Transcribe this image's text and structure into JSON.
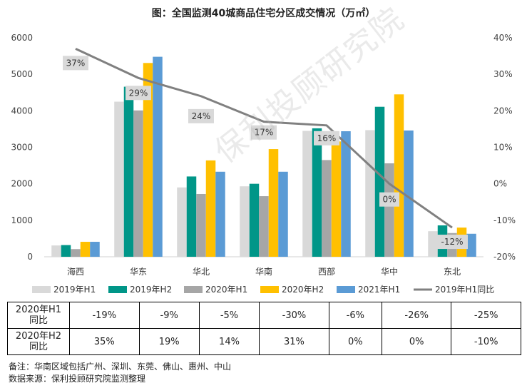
{
  "title": "图：全国监测40城商品住宅分区成交情况（万㎡）",
  "watermark": "保利投顾研究院",
  "chart_data": {
    "type": "bar",
    "categories": [
      "海西",
      "华东",
      "华北",
      "华南",
      "西部",
      "华中",
      "东北"
    ],
    "series": [
      {
        "name": "2019年H1",
        "color": "#d9d9d9",
        "values": [
          310,
          4250,
          1900,
          1930,
          3450,
          3470,
          700
        ]
      },
      {
        "name": "2019年H2",
        "color": "#009688",
        "values": [
          320,
          4660,
          2200,
          2000,
          3520,
          4110,
          860
        ]
      },
      {
        "name": "2020年H1",
        "color": "#a6a6a6",
        "values": [
          210,
          4010,
          1720,
          1660,
          2650,
          2560,
          650
        ]
      },
      {
        "name": "2020年H2",
        "color": "#ffc000",
        "values": [
          410,
          5310,
          2640,
          2950,
          3160,
          4450,
          800
        ]
      },
      {
        "name": "2021年H1",
        "color": "#5b9bd5",
        "values": [
          410,
          5480,
          2330,
          2330,
          3440,
          3460,
          630
        ]
      }
    ],
    "line_series": {
      "name": "2019年H1同比",
      "color": "#808080",
      "values": [
        37,
        29,
        24,
        17,
        16,
        0,
        -12
      ],
      "labels": [
        "37%",
        "29%",
        "24%",
        "17%",
        "16%",
        "0%",
        "-12%"
      ]
    },
    "y_left": {
      "min": 0,
      "max": 6000,
      "ticks": [
        "0",
        "1000",
        "2000",
        "3000",
        "4000",
        "5000",
        "6000"
      ]
    },
    "y_right": {
      "min": -20,
      "max": 40,
      "ticks": [
        "-20%",
        "-10%",
        "0%",
        "10%",
        "20%",
        "30%",
        "40%"
      ]
    },
    "legend_position": "bottom"
  },
  "yoy_table": {
    "rows": [
      {
        "label": "2020年H1同比",
        "values": [
          "-19%",
          "-9%",
          "-5%",
          "-30%",
          "-6%",
          "-26%",
          "-25%"
        ]
      },
      {
        "label": "2020年H2同比",
        "values": [
          "35%",
          "19%",
          "14%",
          "31%",
          "0%",
          "0%",
          "-10%"
        ]
      }
    ]
  },
  "notes": {
    "remark": "备注：华南区域包括广州、深圳、东莞、佛山、惠州、中山",
    "source": "数据来源：保利投顾研究院监测整理"
  }
}
